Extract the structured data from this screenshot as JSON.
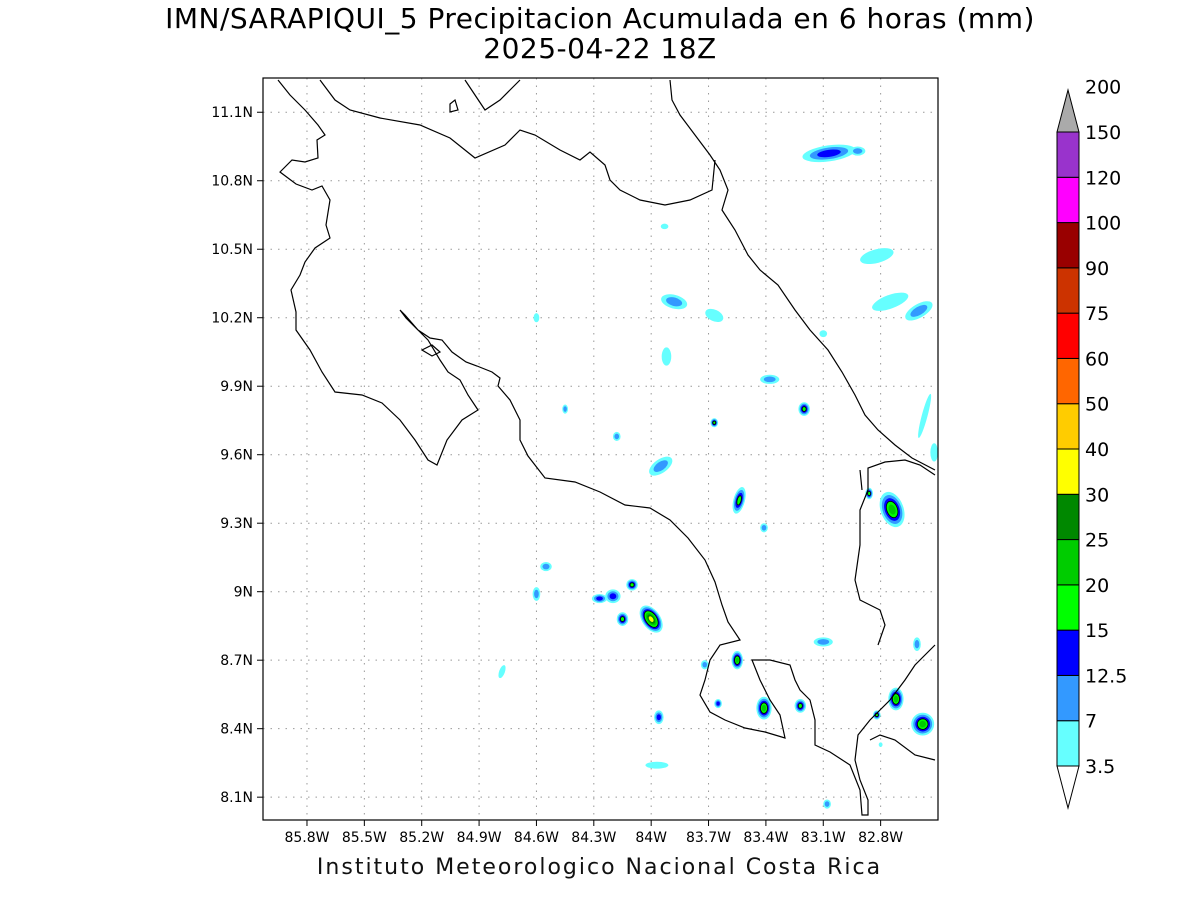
{
  "title": "IMN/SARAPIQUI_5 Precipitacion Acumulada en 6 horas (mm)",
  "subtitle": "2025-04-22 18Z",
  "footer": "Instituto Meteorologico Nacional Costa Rica",
  "map": {
    "lon_range": [
      -86.03,
      -82.5
    ],
    "lat_range": [
      8.0,
      11.25
    ],
    "lon_ticks": [
      {
        "value": -85.8,
        "label": "85.8W"
      },
      {
        "value": -85.5,
        "label": "85.5W"
      },
      {
        "value": -85.2,
        "label": "85.2W"
      },
      {
        "value": -84.9,
        "label": "84.9W"
      },
      {
        "value": -84.6,
        "label": "84.6W"
      },
      {
        "value": -84.3,
        "label": "84.3W"
      },
      {
        "value": -84.0,
        "label": "84W"
      },
      {
        "value": -83.7,
        "label": "83.7W"
      },
      {
        "value": -83.4,
        "label": "83.4W"
      },
      {
        "value": -83.1,
        "label": "83.1W"
      },
      {
        "value": -82.8,
        "label": "82.8W"
      }
    ],
    "lat_ticks": [
      {
        "value": 8.1,
        "label": "8.1N"
      },
      {
        "value": 8.4,
        "label": "8.4N"
      },
      {
        "value": 8.7,
        "label": "8.7N"
      },
      {
        "value": 9.0,
        "label": "9N"
      },
      {
        "value": 9.3,
        "label": "9.3N"
      },
      {
        "value": 9.6,
        "label": "9.6N"
      },
      {
        "value": 9.9,
        "label": "9.9N"
      },
      {
        "value": 10.2,
        "label": "10.2N"
      },
      {
        "value": 10.5,
        "label": "10.5N"
      },
      {
        "value": 10.8,
        "label": "10.8N"
      },
      {
        "value": 11.1,
        "label": "11.1N"
      }
    ],
    "grid": true
  },
  "colorbar": {
    "levels": [
      {
        "label": "3.5",
        "color": "#66ffff"
      },
      {
        "label": "7",
        "color": "#3399ff"
      },
      {
        "label": "12.5",
        "color": "#0000ff"
      },
      {
        "label": "15",
        "color": "#00ff00"
      },
      {
        "label": "20",
        "color": "#00cc00"
      },
      {
        "label": "25",
        "color": "#008800"
      },
      {
        "label": "30",
        "color": "#ffff00"
      },
      {
        "label": "40",
        "color": "#ffcc00"
      },
      {
        "label": "50",
        "color": "#ff6600"
      },
      {
        "label": "60",
        "color": "#ff0000"
      },
      {
        "label": "75",
        "color": "#cc3300"
      },
      {
        "label": "90",
        "color": "#990000"
      },
      {
        "label": "100",
        "color": "#ff00ff"
      },
      {
        "label": "120",
        "color": "#9933cc"
      },
      {
        "label": "150",
        "color": "#f2f2f2"
      },
      {
        "label": "200",
        "color": "#aaaaaa"
      }
    ]
  },
  "precip_cells": [
    {
      "lon": -83.07,
      "lat": 10.92,
      "rx": 0.14,
      "ry": 0.035,
      "rot": -8,
      "level": 2
    },
    {
      "lon": -82.92,
      "lat": 10.93,
      "rx": 0.04,
      "ry": 0.02,
      "rot": 0,
      "level": 1
    },
    {
      "lon": -82.82,
      "lat": 10.47,
      "rx": 0.09,
      "ry": 0.03,
      "rot": -15,
      "level": 0
    },
    {
      "lon": -82.75,
      "lat": 10.27,
      "rx": 0.1,
      "ry": 0.03,
      "rot": -20,
      "level": 0
    },
    {
      "lon": -82.6,
      "lat": 10.23,
      "rx": 0.08,
      "ry": 0.03,
      "rot": -30,
      "level": 1
    },
    {
      "lon": -83.88,
      "lat": 10.27,
      "rx": 0.07,
      "ry": 0.03,
      "rot": 15,
      "level": 1
    },
    {
      "lon": -83.67,
      "lat": 10.21,
      "rx": 0.05,
      "ry": 0.025,
      "rot": 25,
      "level": 0
    },
    {
      "lon": -83.92,
      "lat": 10.03,
      "rx": 0.025,
      "ry": 0.04,
      "rot": 0,
      "level": 0
    },
    {
      "lon": -83.38,
      "lat": 9.93,
      "rx": 0.05,
      "ry": 0.02,
      "rot": 0,
      "level": 1
    },
    {
      "lon": -83.2,
      "lat": 9.8,
      "rx": 0.03,
      "ry": 0.03,
      "rot": 0,
      "level": 3
    },
    {
      "lon": -83.67,
      "lat": 9.74,
      "rx": 0.02,
      "ry": 0.02,
      "rot": 0,
      "level": 3
    },
    {
      "lon": -83.95,
      "lat": 9.55,
      "rx": 0.07,
      "ry": 0.03,
      "rot": -35,
      "level": 1
    },
    {
      "lon": -84.18,
      "lat": 9.68,
      "rx": 0.02,
      "ry": 0.02,
      "rot": 0,
      "level": 1
    },
    {
      "lon": -83.54,
      "lat": 9.4,
      "rx": 0.03,
      "ry": 0.06,
      "rot": 15,
      "level": 3
    },
    {
      "lon": -82.74,
      "lat": 9.36,
      "rx": 0.06,
      "ry": 0.08,
      "rot": -20,
      "level": 4
    },
    {
      "lon": -82.86,
      "lat": 9.43,
      "rx": 0.02,
      "ry": 0.025,
      "rot": 0,
      "level": 3
    },
    {
      "lon": -84.0,
      "lat": 8.88,
      "rx": 0.08,
      "ry": 0.04,
      "rot": 55,
      "level": 6
    },
    {
      "lon": -84.1,
      "lat": 9.03,
      "rx": 0.03,
      "ry": 0.025,
      "rot": 0,
      "level": 3
    },
    {
      "lon": -84.2,
      "lat": 8.98,
      "rx": 0.04,
      "ry": 0.03,
      "rot": 0,
      "level": 2
    },
    {
      "lon": -84.15,
      "lat": 8.88,
      "rx": 0.03,
      "ry": 0.03,
      "rot": 0,
      "level": 3
    },
    {
      "lon": -84.27,
      "lat": 8.97,
      "rx": 0.04,
      "ry": 0.02,
      "rot": 0,
      "level": 2
    },
    {
      "lon": -84.55,
      "lat": 9.11,
      "rx": 0.03,
      "ry": 0.02,
      "rot": 0,
      "level": 1
    },
    {
      "lon": -84.6,
      "lat": 8.99,
      "rx": 0.02,
      "ry": 0.03,
      "rot": 0,
      "level": 1
    },
    {
      "lon": -83.55,
      "lat": 8.7,
      "rx": 0.03,
      "ry": 0.04,
      "rot": 0,
      "level": 4
    },
    {
      "lon": -83.72,
      "lat": 8.68,
      "rx": 0.02,
      "ry": 0.02,
      "rot": 0,
      "level": 1
    },
    {
      "lon": -83.41,
      "lat": 8.49,
      "rx": 0.04,
      "ry": 0.05,
      "rot": 0,
      "level": 4
    },
    {
      "lon": -83.22,
      "lat": 8.5,
      "rx": 0.03,
      "ry": 0.03,
      "rot": 0,
      "level": 3
    },
    {
      "lon": -83.65,
      "lat": 8.51,
      "rx": 0.02,
      "ry": 0.02,
      "rot": 0,
      "level": 2
    },
    {
      "lon": -83.96,
      "lat": 8.45,
      "rx": 0.025,
      "ry": 0.03,
      "rot": 0,
      "level": 2
    },
    {
      "lon": -83.1,
      "lat": 8.78,
      "rx": 0.05,
      "ry": 0.02,
      "rot": 0,
      "level": 1
    },
    {
      "lon": -82.72,
      "lat": 8.53,
      "rx": 0.04,
      "ry": 0.05,
      "rot": 0,
      "level": 4
    },
    {
      "lon": -82.58,
      "lat": 8.42,
      "rx": 0.06,
      "ry": 0.05,
      "rot": -20,
      "level": 4
    },
    {
      "lon": -82.82,
      "lat": 8.46,
      "rx": 0.02,
      "ry": 0.02,
      "rot": 0,
      "level": 3
    },
    {
      "lon": -82.61,
      "lat": 8.77,
      "rx": 0.02,
      "ry": 0.03,
      "rot": 0,
      "level": 1
    },
    {
      "lon": -83.08,
      "lat": 8.07,
      "rx": 0.02,
      "ry": 0.02,
      "rot": 0,
      "level": 1
    },
    {
      "lon": -83.97,
      "lat": 8.24,
      "rx": 0.06,
      "ry": 0.015,
      "rot": 0,
      "level": 0
    },
    {
      "lon": -84.78,
      "lat": 8.65,
      "rx": 0.015,
      "ry": 0.03,
      "rot": 20,
      "level": 0
    },
    {
      "lon": -82.57,
      "lat": 9.77,
      "rx": 0.015,
      "ry": 0.1,
      "rot": 15,
      "level": 0
    },
    {
      "lon": -84.45,
      "lat": 9.8,
      "rx": 0.015,
      "ry": 0.02,
      "rot": 0,
      "level": 1
    },
    {
      "lon": -84.6,
      "lat": 10.2,
      "rx": 0.015,
      "ry": 0.02,
      "rot": 0,
      "level": 0
    },
    {
      "lon": -83.41,
      "lat": 9.28,
      "rx": 0.02,
      "ry": 0.02,
      "rot": 0,
      "level": 1
    },
    {
      "lon": -82.52,
      "lat": 9.61,
      "rx": 0.02,
      "ry": 0.04,
      "rot": 0,
      "level": 0
    },
    {
      "lon": -83.1,
      "lat": 10.13,
      "rx": 0.02,
      "ry": 0.015,
      "rot": 0,
      "level": 0
    },
    {
      "lon": -83.93,
      "lat": 10.6,
      "rx": 0.02,
      "ry": 0.012,
      "rot": 0,
      "level": 0
    },
    {
      "lon": -82.8,
      "lat": 8.33,
      "rx": 0.01,
      "ry": 0.01,
      "rot": 0,
      "level": 0
    }
  ]
}
